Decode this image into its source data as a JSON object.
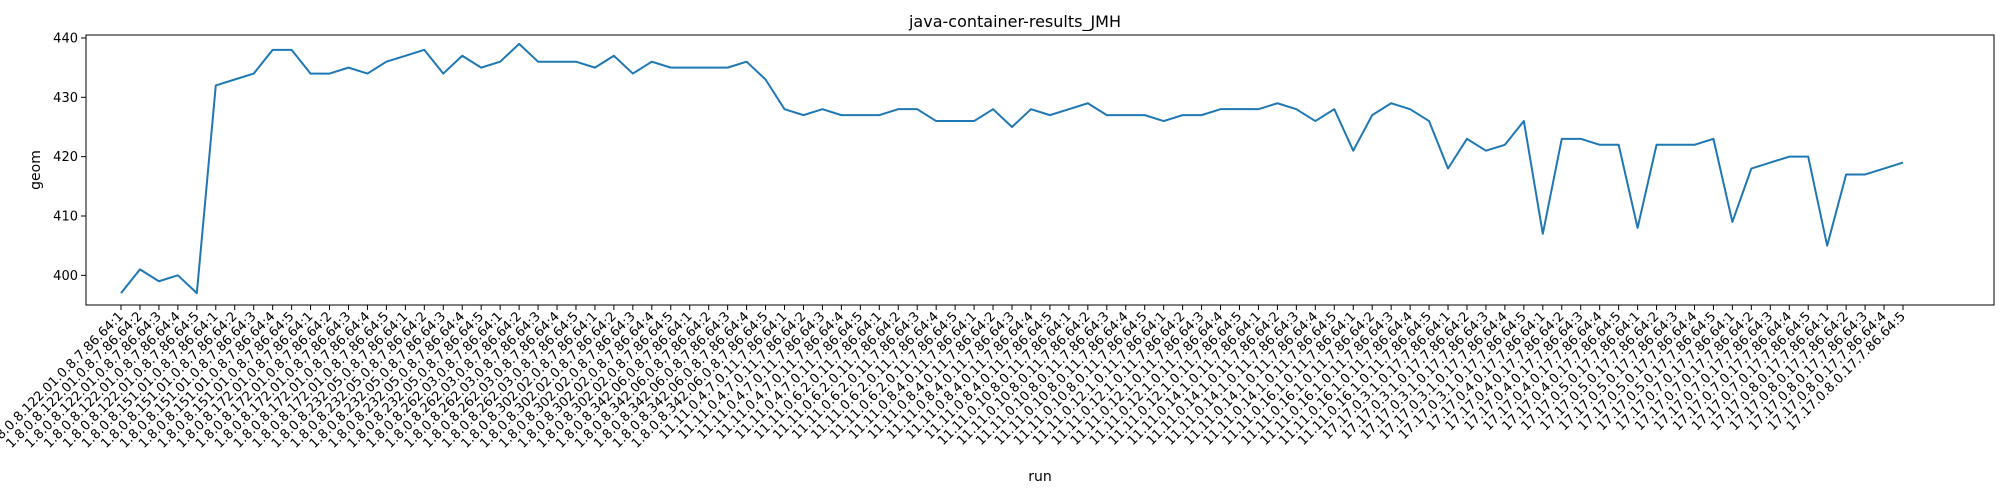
{
  "chart_data": {
    "type": "line",
    "title": "java-container-results_JMH",
    "xlabel": "run",
    "ylabel": "geom",
    "ylim": [
      395,
      440.5
    ],
    "yticks": [
      400,
      410,
      420,
      430,
      440
    ],
    "grid": false,
    "categories": [
      "1.8.0.8.122.01.0.8.7.86.64:1",
      "1.8.0.8.122.01.0.8.7.86.64:2",
      "1.8.0.8.122.01.0.8.7.86.64:3",
      "1.8.0.8.122.01.0.8.7.86.64:4",
      "1.8.0.8.122.01.0.8.7.86.64:5",
      "1.8.0.8.151.01.0.8.7.86.64:1",
      "1.8.0.8.151.01.0.8.7.86.64:2",
      "1.8.0.8.151.01.0.8.7.86.64:3",
      "1.8.0.8.151.01.0.8.7.86.64:4",
      "1.8.0.8.151.01.0.8.7.86.64:5",
      "1.8.0.8.172.01.0.8.7.86.64:1",
      "1.8.0.8.172.01.0.8.7.86.64:2",
      "1.8.0.8.172.01.0.8.7.86.64:3",
      "1.8.0.8.172.01.0.8.7.86.64:4",
      "1.8.0.8.172.01.0.8.7.86.64:5",
      "1.8.0.8.232.05.0.8.7.86.64:1",
      "1.8.0.8.232.05.0.8.7.86.64:2",
      "1.8.0.8.232.05.0.8.7.86.64:3",
      "1.8.0.8.232.05.0.8.7.86.64:4",
      "1.8.0.8.232.05.0.8.7.86.64:5",
      "1.8.0.8.262.03.0.8.7.86.64:1",
      "1.8.0.8.262.03.0.8.7.86.64:2",
      "1.8.0.8.262.03.0.8.7.86.64:3",
      "1.8.0.8.262.03.0.8.7.86.64:4",
      "1.8.0.8.262.03.0.8.7.86.64:5",
      "1.8.0.8.302.02.0.8.7.86.64:1",
      "1.8.0.8.302.02.0.8.7.86.64:2",
      "1.8.0.8.302.02.0.8.7.86.64:3",
      "1.8.0.8.302.02.0.8.7.86.64:4",
      "1.8.0.8.302.02.0.8.7.86.64:5",
      "1.8.0.8.342.06.0.8.7.86.64:1",
      "1.8.0.8.342.06.0.8.7.86.64:2",
      "1.8.0.8.342.06.0.8.7.86.64:3",
      "1.8.0.8.342.06.0.8.7.86.64:4",
      "1.8.0.8.342.06.0.8.7.86.64:5",
      "11.11.0.4.7.0.11.7.86.64:1",
      "11.11.0.4.7.0.11.7.86.64:2",
      "11.11.0.4.7.0.11.7.86.64:3",
      "11.11.0.4.7.0.11.7.86.64:4",
      "11.11.0.4.7.0.11.7.86.64:5",
      "11.11.0.6.2.0.11.7.86.64:1",
      "11.11.0.6.2.0.11.7.86.64:2",
      "11.11.0.6.2.0.11.7.86.64:3",
      "11.11.0.6.2.0.11.7.86.64:4",
      "11.11.0.6.2.0.11.7.86.64:5",
      "11.11.0.8.4.0.11.7.86.64:1",
      "11.11.0.8.4.0.11.7.86.64:2",
      "11.11.0.8.4.0.11.7.86.64:3",
      "11.11.0.8.4.0.11.7.86.64:4",
      "11.11.0.8.4.0.11.7.86.64:5",
      "11.11.0.10.8.0.11.7.86.64:1",
      "11.11.0.10.8.0.11.7.86.64:2",
      "11.11.0.10.8.0.11.7.86.64:3",
      "11.11.0.10.8.0.11.7.86.64:4",
      "11.11.0.10.8.0.11.7.86.64:5",
      "11.11.0.12.1.0.11.7.86.64:1",
      "11.11.0.12.1.0.11.7.86.64:2",
      "11.11.0.12.1.0.11.7.86.64:3",
      "11.11.0.12.1.0.11.7.86.64:4",
      "11.11.0.12.1.0.11.7.86.64:5",
      "11.11.0.14.1.0.11.7.86.64:1",
      "11.11.0.14.1.0.11.7.86.64:2",
      "11.11.0.14.1.0.11.7.86.64:3",
      "11.11.0.14.1.0.11.7.86.64:4",
      "11.11.0.14.1.0.11.7.86.64:5",
      "11.11.0.16.1.0.11.7.86.64:1",
      "11.11.0.16.1.0.11.7.86.64:2",
      "11.11.0.16.1.0.11.7.86.64:3",
      "11.11.0.16.1.0.11.7.86.64:4",
      "11.11.0.16.1.0.11.7.86.64:5",
      "17.17.0.3.1.0.17.7.86.64:1",
      "17.17.0.3.1.0.17.7.86.64:2",
      "17.17.0.3.1.0.17.7.86.64:3",
      "17.17.0.3.1.0.17.7.86.64:4",
      "17.17.0.3.1.0.17.7.86.64:5",
      "17.17.0.4.0.17.7.86.64:1",
      "17.17.0.4.0.17.7.86.64:2",
      "17.17.0.4.0.17.7.86.64:3",
      "17.17.0.4.0.17.7.86.64:4",
      "17.17.0.4.0.17.7.86.64:5",
      "17.17.0.5.0.17.7.86.64:1",
      "17.17.0.5.0.17.7.86.64:2",
      "17.17.0.5.0.17.7.86.64:3",
      "17.17.0.5.0.17.7.86.64:4",
      "17.17.0.5.0.17.7.86.64:5",
      "17.17.0.7.0.17.7.86.64:1",
      "17.17.0.7.0.17.7.86.64:2",
      "17.17.0.7.0.17.7.86.64:3",
      "17.17.0.7.0.17.7.86.64:4",
      "17.17.0.7.0.17.7.86.64:5",
      "17.17.0.8.0.17.7.86.64:1",
      "17.17.0.8.0.17.7.86.64:2",
      "17.17.0.8.0.17.7.86.64:3",
      "17.17.0.8.0.17.7.86.64:4",
      "17.17.0.8.0.17.7.86.64:5"
    ],
    "series": [
      {
        "values": [
          397,
          401,
          399,
          400,
          397,
          432,
          433,
          434,
          438,
          438,
          434,
          434,
          435,
          434,
          436,
          437,
          438,
          434,
          437,
          435,
          436,
          439,
          436,
          436,
          436,
          435,
          437,
          434,
          436,
          435,
          435,
          435,
          435,
          436,
          433,
          428,
          427,
          428,
          427,
          427,
          427,
          428,
          428,
          426,
          426,
          426,
          428,
          425,
          428,
          427,
          428,
          429,
          427,
          427,
          427,
          426,
          427,
          427,
          428,
          428,
          428,
          429,
          428,
          426,
          428,
          421,
          427,
          429,
          428,
          426,
          418,
          423,
          421,
          422,
          426,
          407,
          423,
          423,
          422,
          422,
          408,
          422,
          422,
          422,
          423,
          409,
          418,
          419,
          420,
          420,
          405,
          417,
          417,
          418,
          419
        ],
        "color": "#1f77b4"
      }
    ]
  }
}
